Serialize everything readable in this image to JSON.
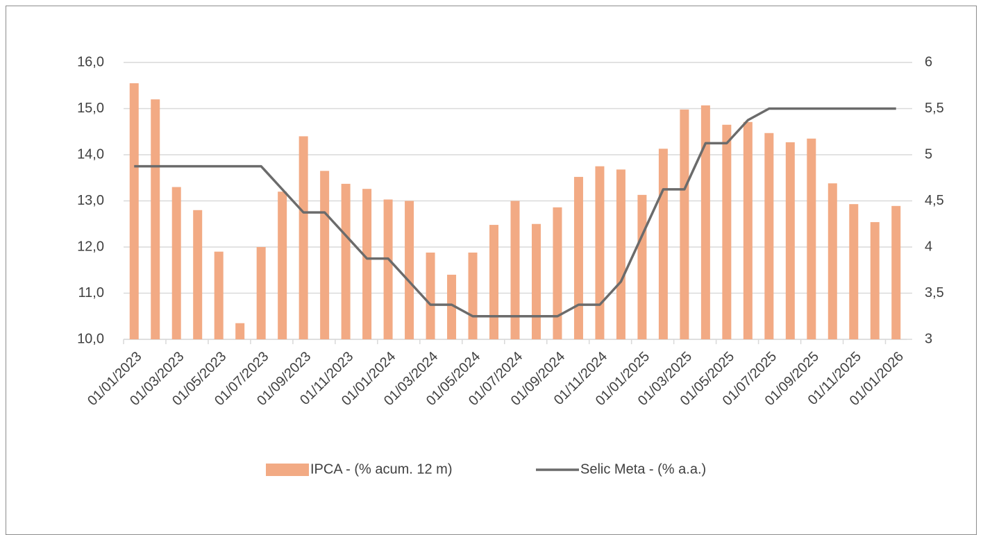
{
  "chart_data": {
    "type": "bar-line",
    "categories": [
      "01/01/2023",
      null,
      "01/03/2023",
      null,
      "01/05/2023",
      null,
      "01/07/2023",
      null,
      "01/09/2023",
      null,
      "01/11/2023",
      null,
      "01/01/2024",
      null,
      "01/03/2024",
      null,
      "01/05/2024",
      null,
      "01/07/2024",
      null,
      "01/09/2024",
      null,
      "01/11/2024",
      null,
      "01/01/2025",
      null,
      "01/03/2025",
      null,
      "01/05/2025",
      null,
      "01/07/2025",
      null,
      "01/09/2025",
      null,
      "01/11/2025",
      null,
      "01/01/2026"
    ],
    "series": [
      {
        "name": "IPCA - (% acum. 12 m)",
        "type": "bar",
        "color": "#f2aa84",
        "axis": "y",
        "values": [
          15.55,
          15.2,
          13.3,
          12.8,
          11.9,
          10.35,
          12.0,
          13.2,
          14.4,
          13.65,
          13.37,
          13.26,
          13.03,
          13.0,
          11.88,
          11.4,
          11.88,
          12.48,
          13.0,
          12.5,
          12.86,
          13.52,
          13.75,
          13.68,
          13.13,
          14.13,
          14.98,
          15.07,
          14.65,
          14.71,
          14.47,
          14.27,
          14.35,
          13.38,
          12.93,
          12.54,
          12.89
        ]
      },
      {
        "name": "Selic Meta - (% a.a.)",
        "type": "line",
        "color": "#6b6b6b",
        "axis": "y2",
        "values": [
          4.875,
          4.875,
          4.875,
          4.875,
          4.875,
          4.875,
          4.875,
          4.625,
          4.375,
          4.375,
          4.125,
          3.875,
          3.875,
          3.625,
          3.375,
          3.375,
          3.25,
          3.25,
          3.25,
          3.25,
          3.25,
          3.375,
          3.375,
          3.625,
          4.125,
          4.625,
          4.625,
          5.125,
          5.125,
          5.375,
          5.5,
          5.5,
          5.5,
          5.5,
          5.5,
          5.5,
          5.5
        ]
      }
    ],
    "ylim": [
      10,
      16
    ],
    "yticks": [
      {
        "value": 10,
        "label": "10,0"
      },
      {
        "value": 11,
        "label": "11,0"
      },
      {
        "value": 12,
        "label": "12,0"
      },
      {
        "value": 13,
        "label": "13,0"
      },
      {
        "value": 14,
        "label": "14,0"
      },
      {
        "value": 15,
        "label": "15,0"
      },
      {
        "value": 16,
        "label": "16,0"
      }
    ],
    "y2lim": [
      3,
      6
    ],
    "y2ticks": [
      3,
      {
        "value": 3.5,
        "label": "3,5"
      },
      4,
      {
        "value": 4.5,
        "label": "4,5"
      },
      5,
      {
        "value": 5.5,
        "label": "5,5"
      },
      6
    ],
    "grid": true,
    "legend": "bottom"
  }
}
